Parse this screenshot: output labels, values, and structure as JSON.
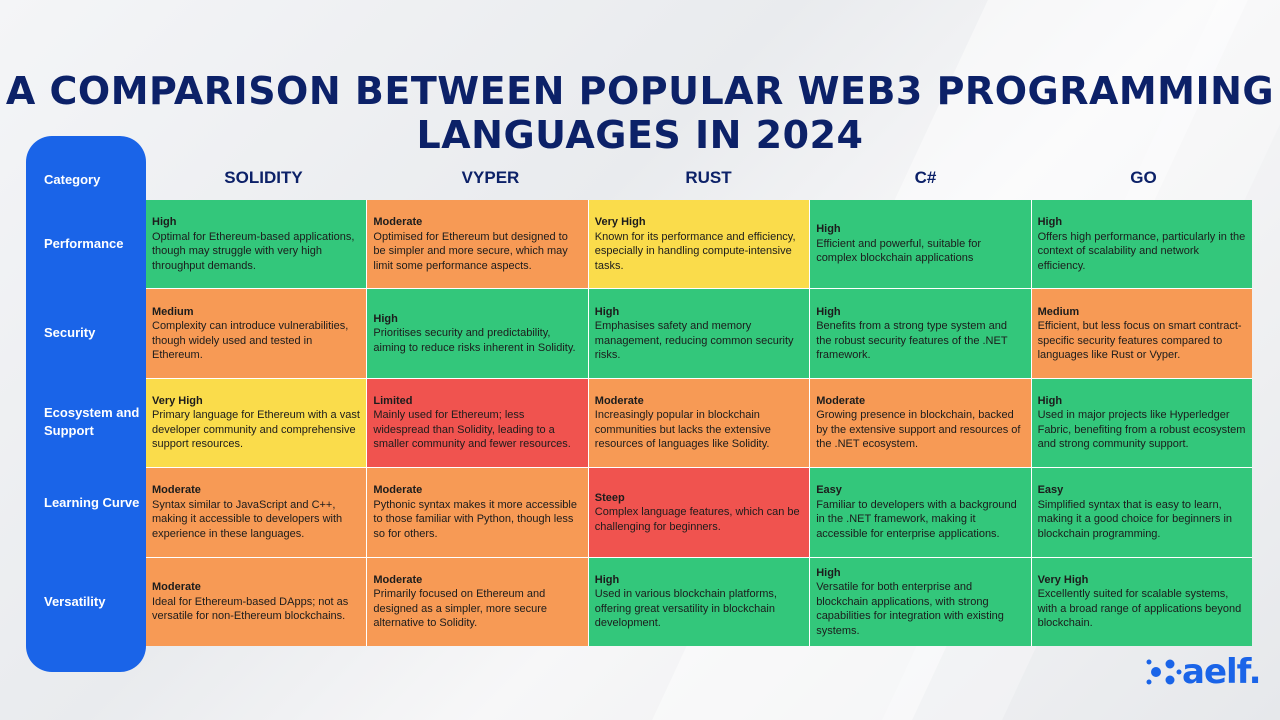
{
  "title": "A COMPARISON BETWEEN POPULAR WEB3 PROGRAMMING LANGUAGES IN 2024",
  "header_category": "Category",
  "columns": [
    "SOLIDITY",
    "VYPER",
    "RUST",
    "C#",
    "GO"
  ],
  "categories": [
    "Performance",
    "Security",
    "Ecosystem and Support",
    "Learning Curve",
    "Versatility"
  ],
  "colors": {
    "green": "#33c77b",
    "orange": "#f79a55",
    "yellow": "#fadc4b",
    "red": "#f0534f",
    "sidebar": "#1a64e8",
    "title": "#0c2168"
  },
  "rows": [
    [
      {
        "rating": "High",
        "text": "Optimal for Ethereum-based applications, though may struggle with very high throughput demands.",
        "color": "green"
      },
      {
        "rating": "Moderate",
        "text": "Optimised for Ethereum but designed to be simpler and more secure, which may limit some performance aspects.",
        "color": "orange"
      },
      {
        "rating": "Very High",
        "text": "Known for its performance and efficiency, especially in handling compute-intensive tasks.",
        "color": "yellow"
      },
      {
        "rating": "High",
        "text": "Efficient and powerful, suitable for complex blockchain applications",
        "color": "green"
      },
      {
        "rating": "High",
        "text": "Offers high performance, particularly in the context of scalability and network efficiency.",
        "color": "green"
      }
    ],
    [
      {
        "rating": "Medium",
        "text": "Complexity can introduce vulnerabilities, though widely used and tested in Ethereum.",
        "color": "orange"
      },
      {
        "rating": "High",
        "text": "Prioritises security and predictability, aiming to reduce risks inherent in Solidity.",
        "color": "green"
      },
      {
        "rating": "High",
        "text": "Emphasises safety and memory management, reducing common security risks.",
        "color": "green"
      },
      {
        "rating": "High",
        "text": "Benefits from a strong type system and the robust security features of the .NET framework.",
        "color": "green"
      },
      {
        "rating": "Medium",
        "text": "Efficient, but less focus on smart contract-specific security features compared to languages like Rust or Vyper.",
        "color": "orange"
      }
    ],
    [
      {
        "rating": "Very High",
        "text": "Primary language for Ethereum with a vast developer community and comprehensive support resources.",
        "color": "yellow"
      },
      {
        "rating": "Limited",
        "text": "Mainly used for Ethereum; less widespread than Solidity, leading to a smaller community and fewer resources.",
        "color": "red"
      },
      {
        "rating": "Moderate",
        "text": "Increasingly popular in blockchain communities but lacks the extensive resources of languages like Solidity.",
        "color": "orange"
      },
      {
        "rating": "Moderate",
        "text": "Growing presence in blockchain, backed by the extensive support and resources of the .NET ecosystem.",
        "color": "orange"
      },
      {
        "rating": "High",
        "text": "Used in major projects like Hyperledger Fabric, benefiting from a robust ecosystem and strong community support.",
        "color": "green"
      }
    ],
    [
      {
        "rating": "Moderate",
        "text": "Syntax similar to JavaScript and C++, making it accessible to developers with experience in these languages.",
        "color": "orange"
      },
      {
        "rating": "Moderate",
        "text": "Pythonic syntax makes it more accessible to those familiar with Python, though less so for others.",
        "color": "orange"
      },
      {
        "rating": "Steep",
        "text": "Complex language features, which can be challenging for beginners.",
        "color": "red"
      },
      {
        "rating": "Easy",
        "text": "Familiar to developers with a background in the .NET framework, making it accessible for enterprise applications.",
        "color": "green"
      },
      {
        "rating": "Easy",
        "text": "Simplified syntax that is easy to learn, making it a good choice for beginners in blockchain programming.",
        "color": "green"
      }
    ],
    [
      {
        "rating": "Moderate",
        "text": "Ideal for Ethereum-based DApps; not as versatile for non-Ethereum blockchains.",
        "color": "orange"
      },
      {
        "rating": "Moderate",
        "text": "Primarily focused on Ethereum and designed as a simpler, more secure alternative to Solidity.",
        "color": "orange"
      },
      {
        "rating": "High",
        "text": "Used in various blockchain platforms, offering great versatility in blockchain development.",
        "color": "green"
      },
      {
        "rating": "High",
        "text": "Versatile for both enterprise and blockchain applications, with strong capabilities for integration with existing systems.",
        "color": "green"
      },
      {
        "rating": "Very High",
        "text": "Excellently suited for scalable systems, with a broad range of applications beyond blockchain.",
        "color": "green"
      }
    ]
  ],
  "logo": {
    "text": "aelf.",
    "icon": "aelf-logo-icon"
  }
}
